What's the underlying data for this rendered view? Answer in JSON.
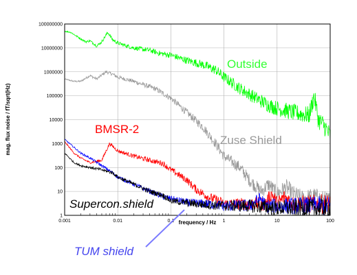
{
  "chart_data": {
    "type": "line",
    "title": "",
    "xlabel": "frequency  /  Hz",
    "ylabel": "mag. flux noise  /  fT/sqrt(Hz)",
    "xscale": "log",
    "yscale": "log",
    "xlim": [
      0.001,
      100
    ],
    "ylim": [
      1,
      100000000
    ],
    "grid": true,
    "x_ticks": [
      "0.001",
      "0.01",
      "0.1",
      "1",
      "10",
      "100"
    ],
    "y_ticks": [
      "1",
      "10",
      "100",
      "1000",
      "10000",
      "100000",
      "1000000",
      "10000000",
      "100000000"
    ],
    "series": [
      {
        "name": "Outside",
        "color": "#00ff00",
        "points": [
          [
            0.001,
            50000000
          ],
          [
            0.0013,
            45000000
          ],
          [
            0.0018,
            28000000
          ],
          [
            0.0025,
            18000000
          ],
          [
            0.003,
            20000000
          ],
          [
            0.004,
            12000000
          ],
          [
            0.005,
            18000000
          ],
          [
            0.0065,
            45000000
          ],
          [
            0.008,
            22000000
          ],
          [
            0.01,
            16000000
          ],
          [
            0.015,
            12000000
          ],
          [
            0.02,
            10000000
          ],
          [
            0.04,
            8000000
          ],
          [
            0.06,
            6000000
          ],
          [
            0.1,
            5000000
          ],
          [
            0.2,
            3000000
          ],
          [
            0.4,
            2000000
          ],
          [
            0.7,
            1200000
          ],
          [
            1,
            600000
          ],
          [
            2,
            200000
          ],
          [
            4,
            80000
          ],
          [
            7,
            40000
          ],
          [
            10,
            30000
          ],
          [
            20,
            20000
          ],
          [
            40,
            15000
          ],
          [
            50,
            100000
          ],
          [
            60,
            10000
          ],
          [
            80,
            5000
          ],
          [
            100,
            2000
          ]
        ]
      },
      {
        "name": "Zuse Shield",
        "color": "#999999",
        "points": [
          [
            0.001,
            500000
          ],
          [
            0.0015,
            400000
          ],
          [
            0.002,
            400000
          ],
          [
            0.003,
            700000
          ],
          [
            0.004,
            500000
          ],
          [
            0.006,
            1000000
          ],
          [
            0.008,
            800000
          ],
          [
            0.01,
            600000
          ],
          [
            0.02,
            400000
          ],
          [
            0.05,
            200000
          ],
          [
            0.1,
            80000
          ],
          [
            0.2,
            20000
          ],
          [
            0.4,
            5000
          ],
          [
            0.7,
            1000
          ],
          [
            1,
            300
          ],
          [
            2,
            100
          ],
          [
            3,
            30
          ],
          [
            5,
            10
          ],
          [
            7,
            20
          ],
          [
            10,
            8
          ],
          [
            15,
            15
          ],
          [
            20,
            8
          ],
          [
            30,
            5
          ],
          [
            50,
            6
          ],
          [
            80,
            4
          ],
          [
            100,
            4
          ]
        ]
      },
      {
        "name": "BMSR-2",
        "color": "#ff0000",
        "points": [
          [
            0.001,
            1200
          ],
          [
            0.0015,
            400
          ],
          [
            0.002,
            250
          ],
          [
            0.003,
            160
          ],
          [
            0.005,
            200
          ],
          [
            0.007,
            1000
          ],
          [
            0.01,
            500
          ],
          [
            0.02,
            300
          ],
          [
            0.04,
            200
          ],
          [
            0.07,
            150
          ],
          [
            0.1,
            80
          ],
          [
            0.2,
            30
          ],
          [
            0.3,
            12
          ],
          [
            0.5,
            6
          ],
          [
            0.8,
            4
          ],
          [
            1,
            3
          ],
          [
            3,
            3
          ],
          [
            6,
            3
          ],
          [
            8,
            8
          ],
          [
            10,
            3
          ],
          [
            14,
            6
          ],
          [
            20,
            3
          ],
          [
            50,
            3
          ],
          [
            100,
            3
          ]
        ]
      },
      {
        "name": "Supercon.shield",
        "color": "#000000",
        "points": [
          [
            0.001,
            400
          ],
          [
            0.0015,
            160
          ],
          [
            0.002,
            120
          ],
          [
            0.003,
            100
          ],
          [
            0.005,
            80
          ],
          [
            0.008,
            60
          ],
          [
            0.01,
            40
          ],
          [
            0.02,
            20
          ],
          [
            0.04,
            10
          ],
          [
            0.07,
            7
          ],
          [
            0.1,
            4
          ],
          [
            0.3,
            3
          ],
          [
            1,
            2.5
          ],
          [
            3,
            2.5
          ],
          [
            10,
            2
          ],
          [
            30,
            2
          ],
          [
            100,
            2
          ]
        ]
      },
      {
        "name": "TUM shield",
        "color": "#0000ff",
        "points": [
          [
            0.001,
            1500
          ],
          [
            0.0015,
            700
          ],
          [
            0.002,
            400
          ],
          [
            0.003,
            250
          ],
          [
            0.005,
            120
          ],
          [
            0.008,
            60
          ],
          [
            0.01,
            40
          ],
          [
            0.02,
            20
          ],
          [
            0.04,
            10
          ],
          [
            0.07,
            6
          ],
          [
            0.1,
            5
          ],
          [
            0.2,
            3.5
          ],
          [
            0.5,
            3
          ],
          [
            1,
            2.5
          ],
          [
            3,
            2.5
          ],
          [
            5,
            5
          ],
          [
            6,
            2.5
          ],
          [
            10,
            2.5
          ],
          [
            20,
            2.5
          ],
          [
            50,
            2.5
          ],
          [
            100,
            2.5
          ]
        ]
      }
    ],
    "annotations": [
      {
        "text": "Outside",
        "color": "#33ff33"
      },
      {
        "text": "Zuse Shield",
        "color": "#999999"
      },
      {
        "text": "BMSR-2",
        "color": "#ff0000"
      },
      {
        "text": "Supercon.shield",
        "color": "#000000"
      },
      {
        "text": "TUM shield",
        "color": "#4444ee"
      }
    ]
  }
}
